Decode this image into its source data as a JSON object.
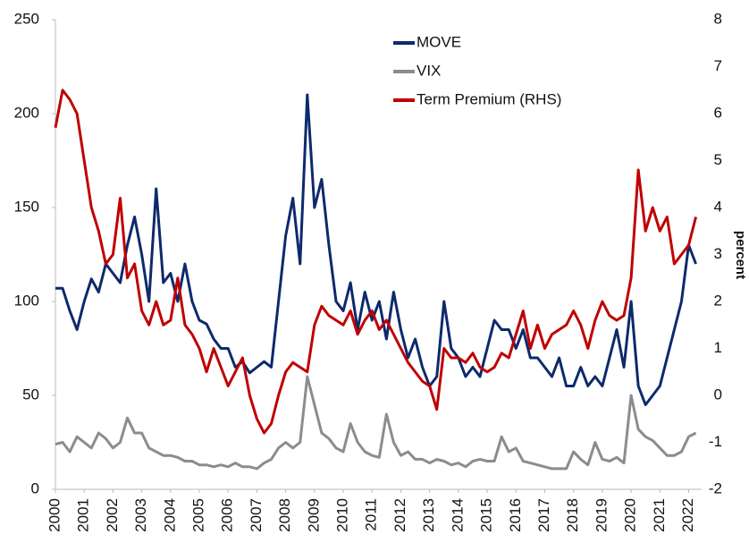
{
  "chart_data": {
    "type": "line",
    "y2label": "percent",
    "xlim": [
      2000,
      2022.45
    ],
    "xticks": [
      2000,
      2001,
      2002,
      2003,
      2004,
      2005,
      2006,
      2007,
      2008,
      2009,
      2010,
      2011,
      2012,
      2013,
      2014,
      2015,
      2016,
      2017,
      2018,
      2019,
      2020,
      2021,
      2022
    ],
    "ylim": [
      0,
      250
    ],
    "yticks": [
      0,
      50,
      100,
      150,
      200,
      250
    ],
    "y2lim": [
      -2,
      8
    ],
    "y2ticks": [
      -2,
      -1,
      0,
      1,
      2,
      3,
      4,
      5,
      6,
      7,
      8
    ],
    "legend": "top-center",
    "x": [
      2000,
      2000.25,
      2000.5,
      2000.75,
      2001,
      2001.25,
      2001.5,
      2001.75,
      2002,
      2002.25,
      2002.5,
      2002.75,
      2003,
      2003.25,
      2003.5,
      2003.75,
      2004,
      2004.25,
      2004.5,
      2004.75,
      2005,
      2005.25,
      2005.5,
      2005.75,
      2006,
      2006.25,
      2006.5,
      2006.75,
      2007,
      2007.25,
      2007.5,
      2007.75,
      2008,
      2008.25,
      2008.5,
      2008.75,
      2009,
      2009.25,
      2009.5,
      2009.75,
      2010,
      2010.25,
      2010.5,
      2010.75,
      2011,
      2011.25,
      2011.5,
      2011.75,
      2012,
      2012.25,
      2012.5,
      2012.75,
      2013,
      2013.25,
      2013.5,
      2013.75,
      2014,
      2014.25,
      2014.5,
      2014.75,
      2015,
      2015.25,
      2015.5,
      2015.75,
      2016,
      2016.25,
      2016.5,
      2016.75,
      2017,
      2017.25,
      2017.5,
      2017.75,
      2018,
      2018.25,
      2018.5,
      2018.75,
      2019,
      2019.25,
      2019.5,
      2019.75,
      2020,
      2020.25,
      2020.5,
      2020.75,
      2021,
      2021.25,
      2021.5,
      2021.75,
      2022,
      2022.25
    ],
    "series": [
      {
        "name": "MOVE",
        "color": "#0d2a6b",
        "values": [
          107,
          107,
          95,
          85,
          100,
          112,
          105,
          120,
          115,
          110,
          130,
          145,
          125,
          100,
          160,
          110,
          115,
          100,
          120,
          100,
          90,
          88,
          80,
          75,
          75,
          65,
          68,
          62,
          65,
          68,
          65,
          100,
          135,
          155,
          120,
          210,
          150,
          165,
          130,
          100,
          95,
          110,
          85,
          105,
          90,
          100,
          80,
          105,
          85,
          70,
          80,
          65,
          55,
          60,
          100,
          75,
          70,
          60,
          65,
          60,
          75,
          90,
          85,
          85,
          75,
          85,
          70,
          70,
          65,
          60,
          70,
          55,
          55,
          65,
          55,
          60,
          55,
          70,
          85,
          65,
          100,
          55,
          45,
          50,
          55,
          70,
          85,
          100,
          130,
          120
        ]
      },
      {
        "name": "VIX",
        "color": "#8c8c8c",
        "values": [
          24,
          25,
          20,
          28,
          25,
          22,
          30,
          27,
          22,
          25,
          38,
          30,
          30,
          22,
          20,
          18,
          18,
          17,
          15,
          15,
          13,
          13,
          12,
          13,
          12,
          14,
          12,
          12,
          11,
          14,
          16,
          22,
          25,
          22,
          25,
          60,
          45,
          30,
          27,
          22,
          20,
          35,
          25,
          20,
          18,
          17,
          40,
          25,
          18,
          20,
          16,
          16,
          14,
          16,
          15,
          13,
          14,
          12,
          15,
          16,
          15,
          15,
          28,
          20,
          22,
          15,
          14,
          13,
          12,
          11,
          11,
          11,
          20,
          16,
          13,
          25,
          16,
          15,
          17,
          14,
          50,
          32,
          28,
          26,
          22,
          18,
          18,
          20,
          28,
          30
        ]
      },
      {
        "name": "Term Premium (RHS)",
        "color": "#c00000",
        "axis": "y2",
        "values": [
          5.7,
          6.5,
          6.3,
          6.0,
          5.0,
          4.0,
          3.5,
          2.8,
          3.0,
          4.2,
          2.5,
          2.8,
          1.8,
          1.5,
          2.0,
          1.5,
          1.6,
          2.5,
          1.5,
          1.3,
          1.0,
          0.5,
          1.0,
          0.6,
          0.2,
          0.5,
          0.8,
          0.0,
          -0.5,
          -0.8,
          -0.6,
          0.0,
          0.5,
          0.7,
          0.6,
          0.5,
          1.5,
          1.9,
          1.7,
          1.6,
          1.5,
          1.8,
          1.3,
          1.6,
          1.8,
          1.4,
          1.6,
          1.3,
          1.0,
          0.7,
          0.5,
          0.3,
          0.2,
          -0.3,
          1.0,
          0.8,
          0.8,
          0.7,
          0.9,
          0.6,
          0.5,
          0.6,
          0.9,
          0.8,
          1.3,
          1.8,
          1.0,
          1.5,
          1.0,
          1.3,
          1.4,
          1.5,
          1.8,
          1.5,
          1.0,
          1.6,
          2.0,
          1.7,
          1.6,
          1.7,
          2.5,
          4.8,
          3.5,
          4.0,
          3.5,
          3.8,
          2.8,
          3.0,
          3.2,
          3.8
        ]
      }
    ]
  }
}
